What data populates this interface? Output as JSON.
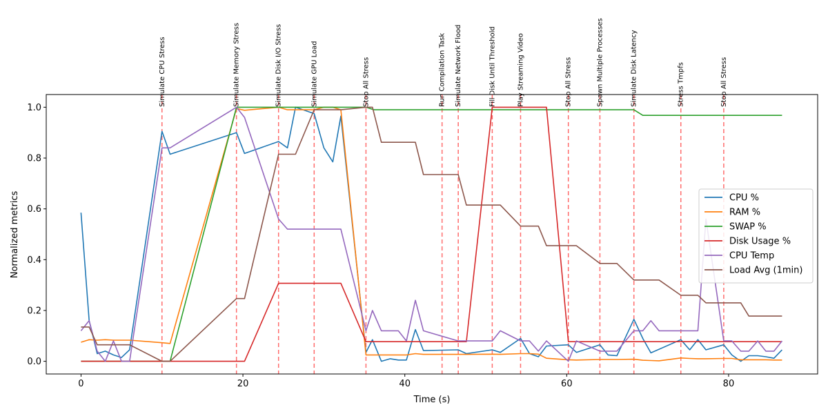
{
  "chart_data": {
    "type": "line",
    "xlabel": "Time (s)",
    "ylabel": "Normalized metrics",
    "xlim": [
      -4.3,
      91
    ],
    "ylim": [
      -0.05,
      1.05
    ],
    "x_ticks": [
      0,
      20,
      40,
      60,
      80
    ],
    "y_ticks": [
      0.0,
      0.2,
      0.4,
      0.6,
      0.8,
      1.0
    ],
    "grid": false,
    "legend_position": "center-right",
    "series": [
      {
        "name": "CPU %",
        "color": "#1f77b4",
        "x": [
          0,
          1,
          2,
          3,
          4,
          5,
          6,
          10,
          11,
          19.2,
          20.2,
          24.4,
          25.5,
          26.5,
          28.8,
          30,
          31.1,
          32.1,
          35.2,
          36,
          37.1,
          38.2,
          39.2,
          40.2,
          41.3,
          42.3,
          46.6,
          47.6,
          50.8,
          51.8,
          54.3,
          55.4,
          56.5,
          57.5,
          60.2,
          61.2,
          64.1,
          65.1,
          66.2,
          68.3,
          69.4,
          70.4,
          74.1,
          75.2,
          76.2,
          77.2,
          79.4,
          80.4,
          81.5,
          82.5,
          83.6,
          84.6,
          85.6,
          86.6
        ],
        "y": [
          0.585,
          0.16,
          0.03,
          0.04,
          0.025,
          0.015,
          0.045,
          0.905,
          0.815,
          0.9,
          0.818,
          0.865,
          0.84,
          1.0,
          0.975,
          0.84,
          0.785,
          0.965,
          0.035,
          0.085,
          0.0,
          0.01,
          0.005,
          0.005,
          0.125,
          0.042,
          0.045,
          0.03,
          0.045,
          0.035,
          0.09,
          0.03,
          0.018,
          0.06,
          0.065,
          0.035,
          0.065,
          0.025,
          0.022,
          0.165,
          0.09,
          0.033,
          0.085,
          0.045,
          0.085,
          0.045,
          0.065,
          0.025,
          0.0,
          0.022,
          0.022,
          0.018,
          0.012,
          0.045
        ]
      },
      {
        "name": "RAM %",
        "color": "#ff7f0e",
        "x": [
          0,
          1,
          2,
          3,
          4,
          5,
          6,
          10,
          11,
          19.2,
          20.2,
          24.4,
          25.5,
          26.5,
          28.8,
          30,
          31.1,
          32.1,
          35.2,
          36,
          40.2,
          41.3,
          42.3,
          46.6,
          47.6,
          50.8,
          51.8,
          54.3,
          55.4,
          56.5,
          57.5,
          60.2,
          61.2,
          64.1,
          65.1,
          66.2,
          68.3,
          69.4,
          70.4,
          71.4,
          74.1,
          75.2,
          76.2,
          77.2,
          79.4,
          80.4,
          81.5,
          82.5,
          83.6,
          84.6,
          85.6,
          86.6
        ],
        "y": [
          0.075,
          0.085,
          0.083,
          0.085,
          0.083,
          0.083,
          0.083,
          0.073,
          0.07,
          0.995,
          0.988,
          1.0,
          0.99,
          0.99,
          0.99,
          1.0,
          1.0,
          0.99,
          0.025,
          0.025,
          0.025,
          0.03,
          0.027,
          0.027,
          0.027,
          0.028,
          0.027,
          0.03,
          0.03,
          0.028,
          0.012,
          0.006,
          0.005,
          0.007,
          0.007,
          0.007,
          0.008,
          0.004,
          0.003,
          0.002,
          0.013,
          0.011,
          0.01,
          0.01,
          0.011,
          0.011,
          0.006,
          0.006,
          0.006,
          0.006,
          0.005,
          0.005
        ]
      },
      {
        "name": "SWAP %",
        "color": "#2ca02c",
        "x": [
          0,
          6,
          10,
          11,
          19.2,
          20.2,
          24.4,
          28.8,
          32.1,
          35.2,
          36.2,
          40.2,
          50.8,
          60.2,
          68.3,
          69.4,
          70.4,
          80.4,
          86.6
        ],
        "y": [
          0.0,
          0.0,
          0.0,
          0.0,
          1.0,
          1.0,
          1.0,
          1.0,
          1.0,
          1.0,
          0.99,
          0.99,
          0.99,
          0.99,
          0.99,
          0.968,
          0.968,
          0.968,
          0.968
        ]
      },
      {
        "name": "Disk Usage %",
        "color": "#d62728",
        "x": [
          0,
          6,
          10,
          11,
          19.2,
          20.2,
          24.4,
          25.5,
          28.8,
          30,
          31.1,
          32.1,
          35.2,
          36,
          40.2,
          46.6,
          47.6,
          50.8,
          51.8,
          54.3,
          57.5,
          60.2,
          61.2,
          64.1,
          68.3,
          74.1,
          80.4,
          86.6
        ],
        "y": [
          0.0,
          0.0,
          0.0,
          0.0,
          0.0,
          0.0,
          0.307,
          0.307,
          0.307,
          0.307,
          0.307,
          0.307,
          0.077,
          0.077,
          0.077,
          0.077,
          0.077,
          1.0,
          1.0,
          1.0,
          1.0,
          0.077,
          0.077,
          0.077,
          0.077,
          0.077,
          0.077,
          0.077
        ]
      },
      {
        "name": "CPU Temp",
        "color": "#9467bd",
        "x": [
          0,
          1,
          2,
          3,
          4,
          5,
          6,
          10,
          11,
          19.2,
          20.2,
          24.4,
          25.5,
          28.8,
          32.1,
          35.2,
          36,
          37.1,
          38.2,
          39.2,
          40.2,
          41.3,
          42.3,
          46.6,
          47.6,
          50.8,
          51.8,
          54.3,
          55.4,
          56.5,
          57.5,
          60.2,
          61.2,
          64.1,
          65.1,
          66.2,
          68.3,
          69.4,
          70.4,
          71.4,
          74.1,
          75.2,
          76.2,
          77.2,
          79.4,
          80.4,
          81.5,
          82.5,
          83.6,
          84.6,
          85.6,
          86.6
        ],
        "y": [
          0.12,
          0.16,
          0.04,
          0.0,
          0.08,
          0.0,
          0.0,
          0.84,
          0.84,
          1.0,
          0.96,
          0.56,
          0.52,
          0.52,
          0.52,
          0.12,
          0.2,
          0.12,
          0.12,
          0.12,
          0.08,
          0.24,
          0.12,
          0.08,
          0.08,
          0.08,
          0.12,
          0.08,
          0.08,
          0.04,
          0.08,
          0.0,
          0.08,
          0.04,
          0.04,
          0.04,
          0.12,
          0.12,
          0.16,
          0.12,
          0.12,
          0.12,
          0.12,
          0.56,
          0.08,
          0.08,
          0.04,
          0.04,
          0.08,
          0.04,
          0.04,
          0.08
        ]
      },
      {
        "name": "Load Avg (1min)",
        "color": "#8c564b",
        "x": [
          0,
          1,
          2,
          3,
          4,
          5,
          6,
          10,
          11,
          19.2,
          20.2,
          24.4,
          25.5,
          26.5,
          28.8,
          30,
          31.1,
          32.1,
          35.2,
          36,
          37.1,
          38.2,
          39.2,
          40.2,
          41.3,
          42.3,
          46.6,
          47.6,
          50.8,
          51.8,
          54.3,
          55.4,
          56.5,
          57.5,
          60.2,
          61.2,
          64.1,
          65.1,
          66.2,
          68.3,
          69.4,
          70.4,
          71.4,
          74.1,
          75.2,
          76.2,
          77.2,
          79.4,
          80.4,
          81.5,
          82.5,
          83.6,
          84.6,
          85.6,
          86.6
        ],
        "y": [
          0.135,
          0.135,
          0.065,
          0.065,
          0.065,
          0.065,
          0.065,
          0.0,
          0.0,
          0.247,
          0.247,
          0.815,
          0.815,
          0.815,
          0.99,
          0.99,
          0.99,
          0.99,
          1.0,
          1.0,
          0.862,
          0.862,
          0.862,
          0.862,
          0.862,
          0.735,
          0.735,
          0.615,
          0.615,
          0.615,
          0.532,
          0.532,
          0.532,
          0.455,
          0.455,
          0.455,
          0.385,
          0.385,
          0.385,
          0.32,
          0.32,
          0.32,
          0.32,
          0.26,
          0.26,
          0.26,
          0.23,
          0.23,
          0.23,
          0.23,
          0.178,
          0.178,
          0.178,
          0.178,
          0.178
        ]
      }
    ],
    "events": [
      {
        "x": 10.0,
        "label": "Simulate CPU Stress"
      },
      {
        "x": 19.2,
        "label": "Simulate Memory Stress"
      },
      {
        "x": 24.4,
        "label": "Simulate Disk I/O Stress"
      },
      {
        "x": 28.8,
        "label": "Simulate GPU Load"
      },
      {
        "x": 35.2,
        "label": "Stop All Stress"
      },
      {
        "x": 44.6,
        "label": "Run Compilation Task"
      },
      {
        "x": 46.6,
        "label": "Simulate Network Flood"
      },
      {
        "x": 50.8,
        "label": "Fill Disk Until Threshold"
      },
      {
        "x": 54.3,
        "label": "Play Streaming Video"
      },
      {
        "x": 60.2,
        "label": "Stop All Stress"
      },
      {
        "x": 64.1,
        "label": "Spawn Multiple Processes"
      },
      {
        "x": 68.3,
        "label": "Simulate Disk Latency"
      },
      {
        "x": 74.1,
        "label": "Stress Tmpfs"
      },
      {
        "x": 79.4,
        "label": "Stop All Stress"
      }
    ],
    "event_line_color": "#ff6b6b"
  }
}
